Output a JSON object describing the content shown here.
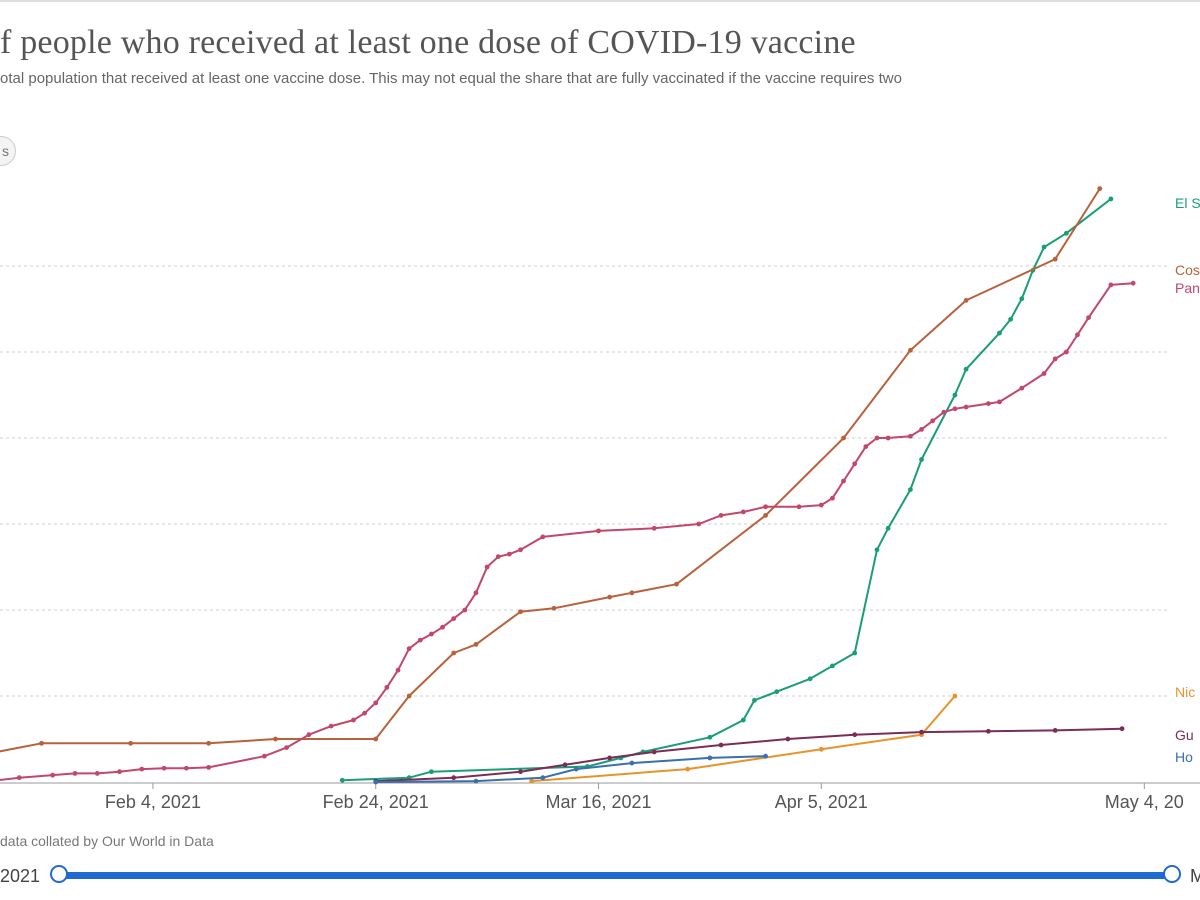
{
  "header": {
    "title": "f people who received at least one dose of COVID-19 vaccine",
    "subtitle": "otal population that received at least one vaccine dose. This may not equal the share that are fully vaccinated if the vaccine requires two",
    "toggle_label": "s"
  },
  "footer": {
    "source": "data collated by Our World in Data",
    "timeline_start": "2021",
    "timeline_end": "M"
  },
  "chart_data": {
    "type": "line",
    "title": "f people who received at least one dose of COVID-19 vaccine",
    "x_ticks": [
      {
        "label": "Feb 4, 2021",
        "day": 35
      },
      {
        "label": "Feb 24, 2021",
        "day": 55
      },
      {
        "label": "Mar 16, 2021",
        "day": 75
      },
      {
        "label": "Apr 5, 2021",
        "day": 95
      },
      {
        "label": "May 4, 20",
        "day": 124
      }
    ],
    "x_range_day": [
      21,
      129
    ],
    "y_range": [
      0,
      7
    ],
    "y_gridlines": [
      1,
      2,
      3,
      4,
      5,
      6
    ],
    "series": [
      {
        "name": "El S",
        "color": "#1a9e77",
        "points": [
          [
            52,
            0.02
          ],
          [
            58,
            0.05
          ],
          [
            60,
            0.12
          ],
          [
            74,
            0.18
          ],
          [
            77,
            0.28
          ],
          [
            79,
            0.35
          ],
          [
            85,
            0.52
          ],
          [
            88,
            0.72
          ],
          [
            89,
            0.95
          ],
          [
            91,
            1.05
          ],
          [
            94,
            1.2
          ],
          [
            96,
            1.35
          ],
          [
            98,
            1.5
          ],
          [
            100,
            2.7
          ],
          [
            101,
            2.95
          ],
          [
            103,
            3.4
          ],
          [
            104,
            3.75
          ],
          [
            107,
            4.5
          ],
          [
            108,
            4.8
          ],
          [
            111,
            5.22
          ],
          [
            112,
            5.38
          ],
          [
            113,
            5.62
          ],
          [
            114,
            5.95
          ],
          [
            115,
            6.22
          ],
          [
            117,
            6.38
          ],
          [
            121,
            6.78
          ]
        ]
      },
      {
        "name": "Cos",
        "color": "#b8623d",
        "points": [
          [
            21,
            0.35
          ],
          [
            25,
            0.45
          ],
          [
            33,
            0.45
          ],
          [
            40,
            0.45
          ],
          [
            46,
            0.5
          ],
          [
            55,
            0.5
          ],
          [
            58,
            1.0
          ],
          [
            62,
            1.5
          ],
          [
            64,
            1.6
          ],
          [
            68,
            1.98
          ],
          [
            71,
            2.02
          ],
          [
            76,
            2.15
          ],
          [
            78,
            2.2
          ],
          [
            82,
            2.3
          ],
          [
            90,
            3.1
          ],
          [
            97,
            4.0
          ],
          [
            103,
            5.02
          ],
          [
            108,
            5.6
          ],
          [
            116,
            6.08
          ],
          [
            120,
            6.9
          ]
        ]
      },
      {
        "name": "Pan",
        "color": "#c2476a",
        "points": [
          [
            21,
            0.02
          ],
          [
            23,
            0.05
          ],
          [
            26,
            0.08
          ],
          [
            28,
            0.1
          ],
          [
            30,
            0.1
          ],
          [
            32,
            0.12
          ],
          [
            34,
            0.15
          ],
          [
            36,
            0.16
          ],
          [
            38,
            0.16
          ],
          [
            40,
            0.17
          ],
          [
            45,
            0.3
          ],
          [
            47,
            0.4
          ],
          [
            49,
            0.55
          ],
          [
            51,
            0.65
          ],
          [
            53,
            0.72
          ],
          [
            54,
            0.8
          ],
          [
            55,
            0.92
          ],
          [
            56,
            1.1
          ],
          [
            57,
            1.3
          ],
          [
            58,
            1.55
          ],
          [
            59,
            1.65
          ],
          [
            60,
            1.72
          ],
          [
            61,
            1.8
          ],
          [
            62,
            1.9
          ],
          [
            63,
            2.0
          ],
          [
            64,
            2.2
          ],
          [
            65,
            2.5
          ],
          [
            66,
            2.62
          ],
          [
            67,
            2.65
          ],
          [
            68,
            2.7
          ],
          [
            70,
            2.85
          ],
          [
            75,
            2.92
          ],
          [
            80,
            2.95
          ],
          [
            84,
            3.0
          ],
          [
            86,
            3.1
          ],
          [
            88,
            3.14
          ],
          [
            90,
            3.2
          ],
          [
            93,
            3.2
          ],
          [
            95,
            3.22
          ],
          [
            96,
            3.3
          ],
          [
            97,
            3.5
          ],
          [
            98,
            3.7
          ],
          [
            99,
            3.9
          ],
          [
            100,
            4.0
          ],
          [
            101,
            4.0
          ],
          [
            103,
            4.02
          ],
          [
            104,
            4.1
          ],
          [
            105,
            4.2
          ],
          [
            106,
            4.3
          ],
          [
            107,
            4.34
          ],
          [
            108,
            4.36
          ],
          [
            110,
            4.4
          ],
          [
            111,
            4.42
          ],
          [
            113,
            4.58
          ],
          [
            115,
            4.75
          ],
          [
            116,
            4.92
          ],
          [
            117,
            5.0
          ],
          [
            118,
            5.2
          ],
          [
            119,
            5.4
          ],
          [
            121,
            5.78
          ],
          [
            123,
            5.8
          ]
        ]
      },
      {
        "name": "Nic",
        "color": "#e8932a",
        "points": [
          [
            69,
            0.01
          ],
          [
            83,
            0.15
          ],
          [
            95,
            0.38
          ],
          [
            104,
            0.55
          ],
          [
            107,
            1.0
          ]
        ]
      },
      {
        "name": "Gu",
        "color": "#7b2d57",
        "points": [
          [
            55,
            0.01
          ],
          [
            62,
            0.05
          ],
          [
            68,
            0.12
          ],
          [
            72,
            0.2
          ],
          [
            76,
            0.28
          ],
          [
            80,
            0.35
          ],
          [
            86,
            0.43
          ],
          [
            92,
            0.5
          ],
          [
            98,
            0.55
          ],
          [
            104,
            0.58
          ],
          [
            110,
            0.59
          ],
          [
            116,
            0.6
          ],
          [
            122,
            0.62
          ]
        ]
      },
      {
        "name": "Ho",
        "color": "#3a6fb0",
        "points": [
          [
            55,
            0.0
          ],
          [
            64,
            0.01
          ],
          [
            70,
            0.05
          ],
          [
            73,
            0.15
          ],
          [
            78,
            0.22
          ],
          [
            85,
            0.28
          ],
          [
            90,
            0.3
          ]
        ]
      }
    ]
  }
}
